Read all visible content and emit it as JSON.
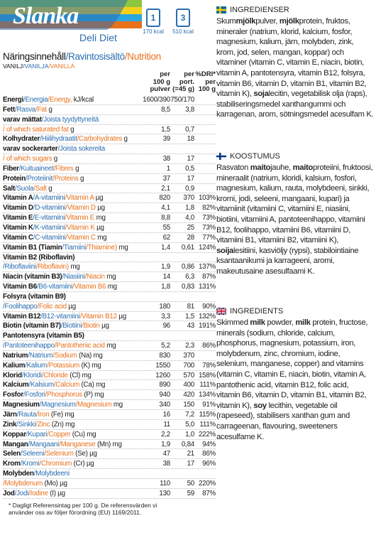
{
  "logo": {
    "brand": "Slanka",
    "product": "Deli Diet"
  },
  "portions": [
    {
      "count": "1",
      "kcal": "170 kcal"
    },
    {
      "count": "3",
      "kcal": "510 kcal"
    }
  ],
  "nutrition": {
    "title": {
      "sv": "Näringsinnehåll",
      "fi": "/Ravintosisältö",
      "en": "/Nutrition"
    },
    "flavor": {
      "sv": "VANILJ",
      "fi": "/VANILJA",
      "en": "/VANILLA"
    },
    "col_headers": [
      [
        "per",
        "100 g",
        "pulver"
      ],
      [
        "per",
        "port.",
        "(=45 g)"
      ],
      [
        "%DRI*",
        "per",
        "100 g"
      ]
    ],
    "rows": [
      {
        "sv": "Energi",
        "fi": "/Energia",
        "en": "/Energy,",
        "unit": "kJ/kcal",
        "per100": "1600/390",
        "port": "750/170"
      },
      {
        "sv": "Fett",
        "fi": "/Rasva",
        "en": "/Fat",
        "unit": "g",
        "per100": "8,5",
        "port": "3,8"
      },
      {
        "sv": "varav mättat",
        "fi": "/Joista tyydyttyneitä"
      },
      {
        "en": "/ of which saturated fat",
        "unit": "g",
        "per100": "1,5",
        "port": "0,7"
      },
      {
        "sv": "Kolhydrater",
        "fi": "/Hiilihydraatit",
        "en": "/Carbohydrates",
        "unit": "g",
        "per100": "39",
        "port": "18"
      },
      {
        "sv": "varav sockerarter",
        "fi": "/Joista sokereita"
      },
      {
        "en": "/ of which sugars",
        "unit": "g",
        "per100": "38",
        "port": "17"
      },
      {
        "sv": "Fiber",
        "fi": "/Kuituaineet",
        "en": "/Fibres",
        "unit": "g",
        "per100": "1",
        "port": "0,5"
      },
      {
        "sv": "Protein",
        "fi": "/Proteiinit",
        "en": "/Proteins",
        "unit": "g",
        "per100": "37",
        "port": "17"
      },
      {
        "sv": "Salt",
        "fi": "/Suola",
        "en": "/Salt",
        "unit": "g",
        "per100": "2,1",
        "port": "0,9"
      },
      {
        "sv": "Vitamin A",
        "fi": "/A-vitamiini",
        "en": "/Vitamin A",
        "unit": "µg",
        "per100": "820",
        "port": "370",
        "dri": "103%"
      },
      {
        "sv": "Vitamin D",
        "fi": "/D-vitamiini",
        "en": "/Vitamin D",
        "unit": "µg",
        "per100": "4,1",
        "port": "1,8",
        "dri": "82%"
      },
      {
        "sv": "Vitamin E",
        "fi": "/E-vitamiini",
        "en": "/Vitamin E",
        "unit": "mg",
        "per100": "8,8",
        "port": "4,0",
        "dri": "73%"
      },
      {
        "sv": "Vitamin K",
        "fi": "/K-vitamiini",
        "en": "/Vitamin K",
        "unit": "µg",
        "per100": "55",
        "port": "25",
        "dri": "73%"
      },
      {
        "sv": "Vitamin C",
        "fi": "/C-vitamiini",
        "en": "/Vitamin C",
        "unit": "mg",
        "per100": "62",
        "port": "28",
        "dri": "77%"
      },
      {
        "sv": "Vitamin B1 (Tiamin",
        "fi": "/Tiamiini",
        "en": "/Thiamine)",
        "unit": "mg",
        "per100": "1,4",
        "port": "0,61",
        "dri": "124%"
      },
      {
        "sv": "Vitamin B2 (Riboflavin)"
      },
      {
        "fi": "/Riboflaviini",
        "en": "/Riboflavin)",
        "unit": "mg",
        "per100": "1,9",
        "port": "0,86",
        "dri": "137%"
      },
      {
        "sv": "Niacin (vitamin B3)",
        "fi": "/Niasiini",
        "en": "/Niacin",
        "unit": "mg",
        "per100": "14",
        "port": "6,3",
        "dri": "87%"
      },
      {
        "sv": "Vitamin B6",
        "fi": "/B6-vitamiini",
        "en": "/Vitamin B6",
        "unit": "mg",
        "per100": "1,8",
        "port": "0,83",
        "dri": "131%"
      },
      {
        "sv": "Folsyra (vitamin B9)"
      },
      {
        "fi": "/Foolihappo",
        "en": "/Folic acid",
        "unit": "µg",
        "per100": "180",
        "port": "81",
        "dri": "90%"
      },
      {
        "sv": "Vitamin B12",
        "fi": "/B12-vitamiini",
        "en": "/Vitamin B12",
        "unit": "µg",
        "per100": "3,3",
        "port": "1,5",
        "dri": "132%"
      },
      {
        "sv": "Biotin (vitamin B7)",
        "fi": "/Biotiini",
        "en": "/Biotin",
        "unit": "µg",
        "per100": "96",
        "port": "43",
        "dri": "191%"
      },
      {
        "sv": "Pantotensyra (vitamin B5)"
      },
      {
        "fi": "/Pantoteenihappo",
        "en": "/Pantothenic acid",
        "unit": "mg",
        "per100": "5,2",
        "port": "2,3",
        "dri": "86%"
      },
      {
        "sv": "Natrium",
        "fi": "/Natrium",
        "en": "/Sodium",
        "unit": "(Na) mg",
        "per100": "830",
        "port": "370"
      },
      {
        "sv": "Kalium",
        "fi": "/Kalium",
        "en": "/Potassium",
        "unit": "(K) mg",
        "per100": "1550",
        "port": "700",
        "dri": "78%"
      },
      {
        "sv": "Klorid",
        "fi": "/Kloridi",
        "en": "/Chloride",
        "unit": "(Cl) mg",
        "per100": "1260",
        "port": "570",
        "dri": "158%"
      },
      {
        "sv": "Kalcium",
        "fi": "/Kalsium",
        "en": "/Calcium",
        "unit": "(Ca) mg",
        "per100": "890",
        "port": "400",
        "dri": "111%"
      },
      {
        "sv": "Fosfor",
        "fi": "/Fosfori",
        "en": "/Phosphorus",
        "unit": "(P) mg",
        "per100": "940",
        "port": "420",
        "dri": "134%"
      },
      {
        "sv": "Magnesium",
        "fi": "/Magnesium",
        "en": "/Magnesium",
        "unit": "mg",
        "per100": "340",
        "port": "150",
        "dri": "91%"
      },
      {
        "sv": "Järn",
        "fi": "/Rauta",
        "en": "/Iron",
        "unit": "(Fe) mg",
        "per100": "16",
        "port": "7,2",
        "dri": "115%"
      },
      {
        "sv": "Zink",
        "fi": "/Sinkki",
        "en": "/Zinc",
        "unit": "(Zn) mg",
        "per100": "11",
        "port": "5,0",
        "dri": "111%"
      },
      {
        "sv": "Koppar",
        "fi": "/Kupari",
        "en": "/Copper",
        "unit": "(Cu) mg",
        "per100": "2,2",
        "port": "1,0",
        "dri": "222%"
      },
      {
        "sv": "Mangan",
        "fi": "/Mangaani",
        "en": "/Manganese",
        "unit": "(Mn) mg",
        "per100": "1,9",
        "port": "0,84",
        "dri": "94%"
      },
      {
        "sv": "Selen",
        "fi": "/Seleeni",
        "en": "/Selenium",
        "unit": "(Se) µg",
        "per100": "47",
        "port": "21",
        "dri": "86%"
      },
      {
        "sv": "Krom",
        "fi": "/Kromi",
        "en": "/Chromium",
        "unit": "(Cr) µg",
        "per100": "38",
        "port": "17",
        "dri": "96%"
      },
      {
        "sv": "Molybden",
        "fi": "/Molybdeeni"
      },
      {
        "en": "/Molybdenum",
        "unit": "(Mo) µg",
        "per100": "110",
        "port": "50",
        "dri": "220%"
      },
      {
        "sv": "Jod",
        "fi": "/Jodi",
        "en": "/Iodine",
        "unit": "(I) µg",
        "per100": "130",
        "port": "59",
        "dri": "87%"
      }
    ],
    "footnote": "* Dagligt Referensintag per 100 g. De referensvärden vi använder oss av följer förordning (EU) 1169/2011."
  },
  "ingredients": [
    {
      "heading": "INGREDIENSER",
      "body": [
        "Skum",
        {
          "b": "mjölk"
        },
        "pulver, ",
        {
          "b": "mjölk"
        },
        "protein, fruktos, mineraler (natrium, klorid, kalcium, fosfor, magnesium, kalium, järn, molybden, zink, krom, jod, selen, mangan, koppar) och vitaminer (vitamin C, vitamin E, niacin, biotin, vitamin A, pantotensyra, vitamin B12, folsyra, vitamin B6, vitamin D, vitamin B1, vitamin B2, vitamin K), ",
        {
          "b": "soja"
        },
        "lecitin, vegetabilisk olja (raps), stabiliseringsmedel xanthangummi och karragenan, arom, sötningsmedel acesulfam K."
      ]
    },
    {
      "heading": "KOOSTUMUS",
      "body": [
        "Rasvaton ",
        {
          "b": "maito"
        },
        "jauhe, ",
        {
          "b": "maito"
        },
        "proteiini, fruktoosi, mineraalit (natrium, kloridi, kalsium, fosfori, magnesium, kalium, rauta, molybdeeni, sinkki, kromi, jodi, seleeni, mangaani, kupari) ja vitamiinit (vitamiini C, vitamiini E, niasiini, biotiini, vitamiini A, pantoteenihappo, vitamiini B12, foolihappo, vitamiini B6, vitamiini D, vitamiini B1, vitamiini B2, vitamiini K), ",
        {
          "b": "soija"
        },
        "lesitiini, kasviöljy (rypsi), stabilointiaine ksantaanikumi ja karrageeni, aromi, makeutusaine asesulfaami K."
      ]
    },
    {
      "heading": "INGREDIENTS",
      "body": [
        "Skimmed ",
        {
          "b": "milk"
        },
        " powder, ",
        {
          "b": "milk"
        },
        " protein, fructose, minerals (sodium, chloride, calcium, phosphorus, magnesium, potassium, iron, molybdenum, zinc, chromium, iodine, selenium, manganese, copper) and vitamins (vitamin C, vitamin E, niacin, biotin, vitamin A, pantothenic acid, vitamin B12, folic acid, vitamin B6, vitamin D, vitamin B1, vitamin B2, vitamin K), ",
        {
          "b": "soy"
        },
        " lecithin, vegetable oil (rapeseed), stabilisers xanthan gum and carrageenan, flavouring, sweeteners acesulfame K."
      ]
    }
  ]
}
